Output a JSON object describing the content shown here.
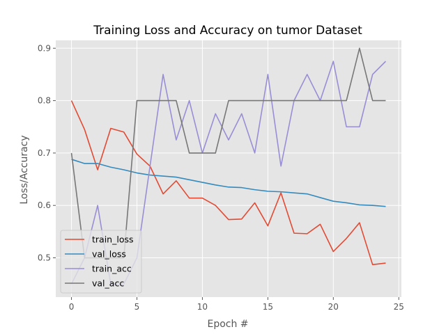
{
  "chart_data": {
    "type": "line",
    "title": "Training Loss and Accuracy on tumor Dataset",
    "xlabel": "Epoch #",
    "ylabel": "Loss/Accuracy",
    "xlim": [
      -1.2,
      25.2
    ],
    "ylim": [
      0.425,
      0.915
    ],
    "xticks": [
      0,
      5,
      10,
      15,
      20,
      25
    ],
    "yticks": [
      0.5,
      0.6,
      0.7,
      0.8,
      0.9
    ],
    "grid": true,
    "legend_position": "lower-left",
    "background": "#e5e5e5",
    "x": [
      0,
      1,
      2,
      3,
      4,
      5,
      6,
      7,
      8,
      9,
      10,
      11,
      12,
      13,
      14,
      15,
      16,
      17,
      18,
      19,
      20,
      21,
      22,
      23,
      24
    ],
    "series": [
      {
        "name": "train_loss",
        "color": "#e24a33",
        "values": [
          0.8,
          0.745,
          0.668,
          0.747,
          0.74,
          0.698,
          0.675,
          0.622,
          0.647,
          0.614,
          0.614,
          0.6,
          0.573,
          0.574,
          0.605,
          0.561,
          0.624,
          0.547,
          0.546,
          0.564,
          0.512,
          0.537,
          0.567,
          0.487,
          0.49
        ]
      },
      {
        "name": "val_loss",
        "color": "#348abd",
        "values": [
          0.688,
          0.68,
          0.68,
          0.673,
          0.668,
          0.662,
          0.658,
          0.656,
          0.654,
          0.649,
          0.644,
          0.639,
          0.635,
          0.634,
          0.63,
          0.627,
          0.626,
          0.624,
          0.622,
          0.615,
          0.608,
          0.605,
          0.601,
          0.6,
          0.598
        ]
      },
      {
        "name": "train_acc",
        "color": "#988ed5",
        "values": [
          0.45,
          0.5,
          0.6,
          0.45,
          0.45,
          0.5,
          0.675,
          0.85,
          0.725,
          0.8,
          0.7,
          0.775,
          0.725,
          0.775,
          0.7,
          0.85,
          0.675,
          0.8,
          0.85,
          0.8,
          0.875,
          0.75,
          0.75,
          0.85,
          0.875
        ]
      },
      {
        "name": "val_acc",
        "color": "#777777",
        "values": [
          0.7,
          0.5,
          0.5,
          0.5,
          0.5,
          0.8,
          0.8,
          0.8,
          0.8,
          0.7,
          0.7,
          0.7,
          0.8,
          0.8,
          0.8,
          0.8,
          0.8,
          0.8,
          0.8,
          0.8,
          0.8,
          0.8,
          0.9,
          0.8,
          0.8
        ]
      }
    ]
  }
}
